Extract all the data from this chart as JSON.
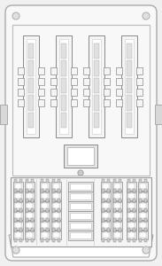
{
  "bg_color": "#f0f0f0",
  "fig_width": 1.83,
  "fig_height": 3.0,
  "dpi": 100,
  "outer_fc": "#f8f8f8",
  "outer_ec": "#aaaaaa",
  "inner_box_ec": "#bbbbbb",
  "relay_fc": "#f2f2f2",
  "relay_ec": "#888888",
  "fuse_fc": "#eeeeee",
  "fuse_ec": "#888888",
  "lower_box_fc": "#f5f5f5",
  "lower_box_ec": "#999999"
}
